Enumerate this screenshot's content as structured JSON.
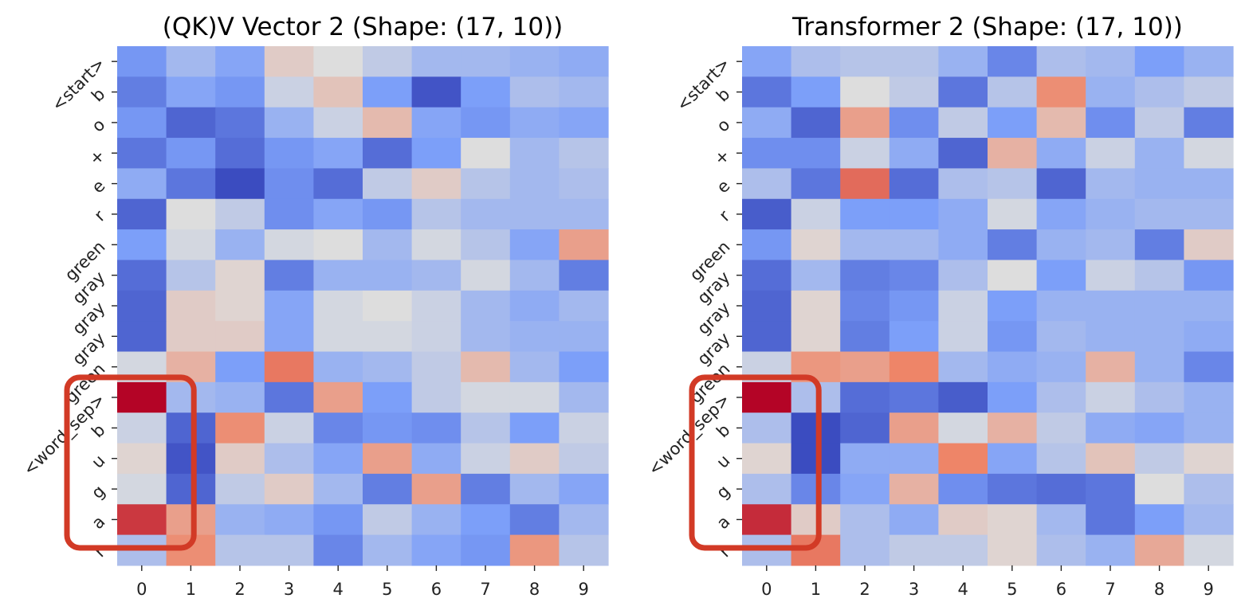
{
  "chart_data": [
    {
      "type": "heatmap",
      "title": "(QK)V Vector 2 (Shape: (17, 10))",
      "rows": [
        "<start>",
        "b",
        "o",
        "+",
        "e",
        "r",
        "green",
        "gray",
        "gray",
        "gray",
        "green",
        "<word_sep>",
        "b",
        "u",
        "g",
        "a",
        "r"
      ],
      "cols": [
        "0",
        "1",
        "2",
        "3",
        "4",
        "5",
        "6",
        "7",
        "8",
        "9"
      ],
      "colormap": "coolwarm",
      "grid": false,
      "colorbar": false,
      "values": [
        [
          -0.55,
          -0.3,
          -0.45,
          0.1,
          0.0,
          -0.15,
          -0.3,
          -0.3,
          -0.35,
          -0.4
        ],
        [
          -0.7,
          -0.45,
          -0.55,
          -0.1,
          0.15,
          -0.5,
          -0.95,
          -0.5,
          -0.25,
          -0.3
        ],
        [
          -0.55,
          -0.85,
          -0.75,
          -0.35,
          -0.1,
          0.2,
          -0.45,
          -0.55,
          -0.4,
          -0.45
        ],
        [
          -0.75,
          -0.55,
          -0.8,
          -0.55,
          -0.45,
          -0.8,
          -0.5,
          0.0,
          -0.3,
          -0.2
        ],
        [
          -0.4,
          -0.75,
          -1.0,
          -0.6,
          -0.8,
          -0.15,
          0.1,
          -0.2,
          -0.3,
          -0.25
        ],
        [
          -0.85,
          0.0,
          -0.15,
          -0.6,
          -0.45,
          -0.55,
          -0.2,
          -0.3,
          -0.3,
          -0.3
        ],
        [
          -0.5,
          -0.05,
          -0.35,
          -0.05,
          0.0,
          -0.3,
          -0.05,
          -0.2,
          -0.45,
          0.35
        ],
        [
          -0.8,
          -0.2,
          0.05,
          -0.7,
          -0.35,
          -0.35,
          -0.3,
          -0.05,
          -0.3,
          -0.7
        ],
        [
          -0.85,
          0.1,
          0.05,
          -0.45,
          -0.05,
          0.0,
          -0.1,
          -0.3,
          -0.4,
          -0.3
        ],
        [
          -0.85,
          0.1,
          0.1,
          -0.45,
          -0.05,
          -0.05,
          -0.1,
          -0.3,
          -0.35,
          -0.35
        ],
        [
          -0.05,
          0.25,
          -0.5,
          0.55,
          -0.35,
          -0.3,
          -0.15,
          0.2,
          -0.3,
          -0.5
        ],
        [
          1.0,
          -0.3,
          -0.35,
          -0.75,
          0.35,
          -0.5,
          -0.15,
          -0.05,
          -0.05,
          -0.3
        ],
        [
          -0.1,
          -0.85,
          0.45,
          -0.1,
          -0.65,
          -0.55,
          -0.6,
          -0.2,
          -0.5,
          -0.1
        ],
        [
          0.05,
          -0.95,
          0.1,
          -0.25,
          -0.45,
          0.35,
          -0.4,
          -0.1,
          0.1,
          -0.15
        ],
        [
          -0.05,
          -0.85,
          -0.15,
          0.1,
          -0.3,
          -0.7,
          0.35,
          -0.7,
          -0.3,
          -0.45
        ],
        [
          0.8,
          0.35,
          -0.35,
          -0.4,
          -0.55,
          -0.15,
          -0.35,
          -0.5,
          -0.7,
          -0.3
        ],
        [
          -0.25,
          0.45,
          -0.2,
          -0.2,
          -0.65,
          -0.3,
          -0.45,
          -0.55,
          0.4,
          -0.2
        ]
      ]
    },
    {
      "type": "heatmap",
      "title": "Transformer 2 (Shape: (17, 10))",
      "rows": [
        "<start>",
        "b",
        "o",
        "+",
        "e",
        "r",
        "green",
        "gray",
        "gray",
        "gray",
        "green",
        "<word_sep>",
        "b",
        "u",
        "g",
        "a",
        "r"
      ],
      "cols": [
        "0",
        "1",
        "2",
        "3",
        "4",
        "5",
        "6",
        "7",
        "8",
        "9"
      ],
      "colormap": "coolwarm",
      "grid": false,
      "colorbar": false,
      "values": [
        [
          -0.45,
          -0.25,
          -0.2,
          -0.2,
          -0.35,
          -0.65,
          -0.25,
          -0.3,
          -0.5,
          -0.35
        ],
        [
          -0.75,
          -0.5,
          0.0,
          -0.15,
          -0.75,
          -0.2,
          0.45,
          -0.35,
          -0.25,
          -0.15
        ],
        [
          -0.4,
          -0.85,
          0.35,
          -0.6,
          -0.15,
          -0.5,
          0.2,
          -0.6,
          -0.15,
          -0.7
        ],
        [
          -0.6,
          -0.6,
          -0.1,
          -0.4,
          -0.85,
          0.25,
          -0.4,
          -0.1,
          -0.35,
          -0.05
        ],
        [
          -0.25,
          -0.75,
          0.6,
          -0.8,
          -0.25,
          -0.2,
          -0.85,
          -0.3,
          -0.35,
          -0.35
        ],
        [
          -0.9,
          -0.1,
          -0.5,
          -0.5,
          -0.4,
          -0.05,
          -0.45,
          -0.35,
          -0.3,
          -0.3
        ],
        [
          -0.55,
          0.05,
          -0.3,
          -0.3,
          -0.4,
          -0.7,
          -0.35,
          -0.3,
          -0.7,
          0.1
        ],
        [
          -0.8,
          -0.3,
          -0.7,
          -0.65,
          -0.25,
          0.0,
          -0.5,
          -0.1,
          -0.2,
          -0.55
        ],
        [
          -0.85,
          0.05,
          -0.65,
          -0.55,
          -0.1,
          -0.5,
          -0.35,
          -0.35,
          -0.35,
          -0.35
        ],
        [
          -0.85,
          0.05,
          -0.7,
          -0.5,
          -0.1,
          -0.55,
          -0.3,
          -0.35,
          -0.35,
          -0.4
        ],
        [
          -0.1,
          0.4,
          0.35,
          0.5,
          -0.3,
          -0.4,
          -0.35,
          0.25,
          -0.35,
          -0.65
        ],
        [
          1.0,
          -0.25,
          -0.8,
          -0.75,
          -0.9,
          -0.5,
          -0.25,
          -0.1,
          -0.25,
          -0.35
        ],
        [
          -0.25,
          -1.0,
          -0.85,
          0.35,
          -0.05,
          0.25,
          -0.15,
          -0.4,
          -0.45,
          -0.35
        ],
        [
          0.05,
          -1.0,
          -0.4,
          -0.4,
          0.5,
          -0.45,
          -0.2,
          0.15,
          -0.15,
          0.05
        ],
        [
          -0.25,
          -0.65,
          -0.45,
          0.25,
          -0.6,
          -0.75,
          -0.8,
          -0.75,
          0.0,
          -0.25
        ],
        [
          0.85,
          0.1,
          -0.25,
          -0.4,
          0.1,
          0.05,
          -0.3,
          -0.75,
          -0.5,
          -0.3
        ],
        [
          -0.25,
          0.55,
          -0.25,
          -0.15,
          -0.15,
          0.05,
          -0.25,
          -0.35,
          0.3,
          -0.05
        ]
      ]
    }
  ],
  "highlight": {
    "color": "#d23a26",
    "rows": [
      11,
      16
    ],
    "cols": [
      0,
      1
    ]
  }
}
